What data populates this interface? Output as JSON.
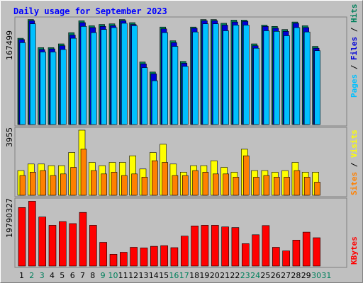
{
  "colors": {
    "background": "#c0c0c0",
    "frame_light": "#ffffff",
    "frame_dark": "#808080",
    "title": "#0000ff",
    "hits": "#00805c",
    "files": "#0000d8",
    "pages": "#00c0ff",
    "visits": "#ffff00",
    "sites": "#ff8000",
    "kbytes": "#ff0000",
    "weekday": "#000000",
    "weekend": "#00805c"
  },
  "chart_data": {
    "type": "bar",
    "title": "Daily usage for September 2023",
    "days": [
      "1",
      "2",
      "3",
      "4",
      "5",
      "6",
      "7",
      "8",
      "9",
      "10",
      "11",
      "12",
      "13",
      "14",
      "15",
      "16",
      "17",
      "18",
      "19",
      "20",
      "21",
      "22",
      "23",
      "24",
      "25",
      "26",
      "27",
      "28",
      "29",
      "30",
      "31"
    ],
    "weekend_days": [
      "2",
      "3",
      "9",
      "10",
      "16",
      "17",
      "23",
      "24",
      "30",
      "31"
    ],
    "top_panel": {
      "ymax_label": "167499",
      "ymax": 167499,
      "side_labels": [
        "Pages",
        "Files",
        "Hits"
      ],
      "series": [
        {
          "name": "Hits",
          "values": [
            138000,
            168000,
            123000,
            123000,
            129000,
            147000,
            166000,
            158000,
            160000,
            161000,
            168000,
            163000,
            100000,
            84000,
            156000,
            134000,
            101000,
            156000,
            168000,
            168000,
            162000,
            167000,
            167000,
            129000,
            159000,
            157000,
            152000,
            164000,
            158000,
            125000,
            null
          ]
        },
        {
          "name": "Files",
          "values": [
            136000,
            166000,
            120000,
            121000,
            126000,
            143000,
            163000,
            155000,
            157000,
            158000,
            166000,
            160000,
            97000,
            81000,
            153000,
            131000,
            98000,
            154000,
            166000,
            166000,
            159000,
            164000,
            165000,
            126000,
            157000,
            154000,
            149000,
            162000,
            155000,
            122000,
            null
          ]
        },
        {
          "name": "Pages",
          "values": [
            131000,
            161000,
            116000,
            116000,
            120000,
            138000,
            157000,
            147000,
            152000,
            155000,
            162000,
            158000,
            91000,
            70000,
            147000,
            125000,
            93000,
            148000,
            161000,
            161000,
            150000,
            159000,
            159000,
            122000,
            150000,
            149000,
            142000,
            155000,
            148000,
            118000,
            null
          ]
        }
      ]
    },
    "middle_panel": {
      "ymax_label": "3955",
      "ymax": 3955,
      "side_labels": [
        "Sites",
        "Visits"
      ],
      "series": [
        {
          "name": "Visits",
          "values": [
            1500,
            1900,
            1900,
            1800,
            1800,
            2600,
            3955,
            2000,
            1800,
            2000,
            2000,
            2400,
            1600,
            2600,
            3100,
            1900,
            1400,
            1800,
            1800,
            2100,
            1700,
            1400,
            2800,
            1500,
            1500,
            1400,
            1500,
            2000,
            1400,
            1400,
            null
          ]
        },
        {
          "name": "Sites",
          "values": [
            1200,
            1400,
            1500,
            1200,
            1300,
            1700,
            2800,
            1500,
            1300,
            1400,
            1200,
            1300,
            1100,
            2100,
            2000,
            1200,
            1200,
            1500,
            1400,
            1300,
            1300,
            1100,
            2400,
            1100,
            1200,
            1100,
            1100,
            1500,
            1100,
            800,
            null
          ]
        }
      ]
    },
    "bottom_panel": {
      "ymax_label": "19790327",
      "ymax": 19790327,
      "side_labels": [
        "KBytes"
      ],
      "series": [
        {
          "name": "KBytes",
          "values": [
            17800000,
            19700000,
            14900000,
            12400000,
            13500000,
            12900000,
            16300000,
            12400000,
            7200000,
            3600000,
            4200000,
            5700000,
            5500000,
            6000000,
            6200000,
            5600000,
            9100000,
            12200000,
            12400000,
            12400000,
            11900000,
            11700000,
            6800000,
            9500000,
            12300000,
            5700000,
            4600000,
            7900000,
            10300000,
            8600000,
            null
          ]
        }
      ]
    }
  }
}
